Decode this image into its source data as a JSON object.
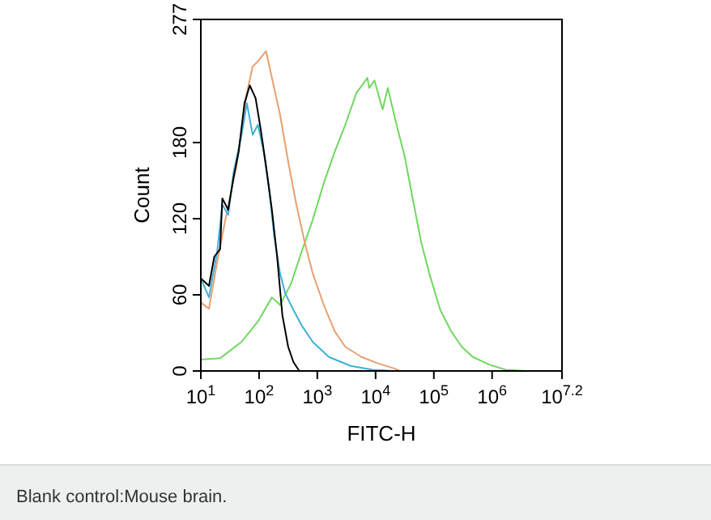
{
  "chart_data": {
    "type": "line",
    "xlabel": "FITC-H",
    "ylabel": "Count",
    "log": "x",
    "xlim": [
      10,
      15848932
    ],
    "ylim": [
      0,
      277
    ],
    "xticks": [
      {
        "value": 10,
        "label": "10$^{1}$"
      },
      {
        "value": 100,
        "label": "10$^{2}$"
      },
      {
        "value": 1000,
        "label": "10$^{3}$"
      },
      {
        "value": 10000,
        "label": "10$^{4}$"
      },
      {
        "value": 100000,
        "label": "10$^{5}$"
      },
      {
        "value": 1000000,
        "label": "10$^{6}$"
      },
      {
        "value": 15848932,
        "label": "10$^{7.2}$"
      }
    ],
    "yticks": [
      0,
      60,
      120,
      180,
      277
    ],
    "grid": false,
    "line_style": "solid",
    "series": [
      {
        "color": "#70d860",
        "x": [
          10,
          21.4,
          50.1,
          95.5,
          166,
          229,
          355,
          537,
          832,
          1290,
          2000,
          3020,
          4680,
          7240,
          7760,
          9550,
          13200,
          16200,
          22900,
          31600,
          43700,
          60300,
          83200,
          129000,
          200000,
          302000,
          468000,
          891000,
          1700000,
          3980000
        ],
        "values": [
          9,
          10,
          23,
          39,
          58,
          52,
          69,
          94,
          119,
          148,
          173,
          194,
          219,
          231,
          223,
          229,
          206,
          223,
          194,
          169,
          135,
          102,
          77,
          48,
          31,
          19,
          11,
          5,
          1,
          0
        ]
      },
      {
        "color": "#e8a070",
        "x": [
          10,
          13.8,
          19.1,
          26.3,
          40.7,
          61.7,
          77.6,
          95.5,
          132,
          166,
          229,
          316,
          437,
          603,
          832,
          1290,
          2000,
          3020,
          5750,
          11000,
          20900,
          26300
        ],
        "values": [
          54,
          49,
          86,
          119,
          161,
          219,
          240,
          244,
          252,
          231,
          202,
          165,
          131,
          102,
          77,
          52,
          31,
          19,
          11,
          6,
          2,
          0
        ]
      },
      {
        "color": "#40b0d8",
        "x": [
          10,
          13.8,
          19.1,
          23.4,
          29.5,
          36.3,
          50.1,
          61.7,
          77.6,
          95.5,
          120,
          148,
          182,
          229,
          282,
          389,
          537,
          832,
          1580,
          3720,
          8910,
          20000
        ],
        "values": [
          73,
          58,
          94,
          131,
          123,
          156,
          186,
          211,
          186,
          194,
          173,
          144,
          106,
          77,
          61,
          48,
          36,
          23,
          11,
          4,
          1,
          0
        ]
      },
      {
        "color": "#000000",
        "x": [
          10,
          13.8,
          17,
          21.4,
          23.4,
          29.5,
          36.3,
          44.7,
          56.2,
          69.2,
          87.1,
          107,
          132,
          166,
          204,
          251,
          316,
          389,
          490
        ],
        "values": [
          73,
          67,
          90,
          96,
          136,
          127,
          152,
          173,
          211,
          225,
          215,
          190,
          161,
          127,
          90,
          44,
          19,
          7,
          0
        ]
      }
    ],
    "annotations": [
      "Blank control:Mouse brain."
    ]
  }
}
